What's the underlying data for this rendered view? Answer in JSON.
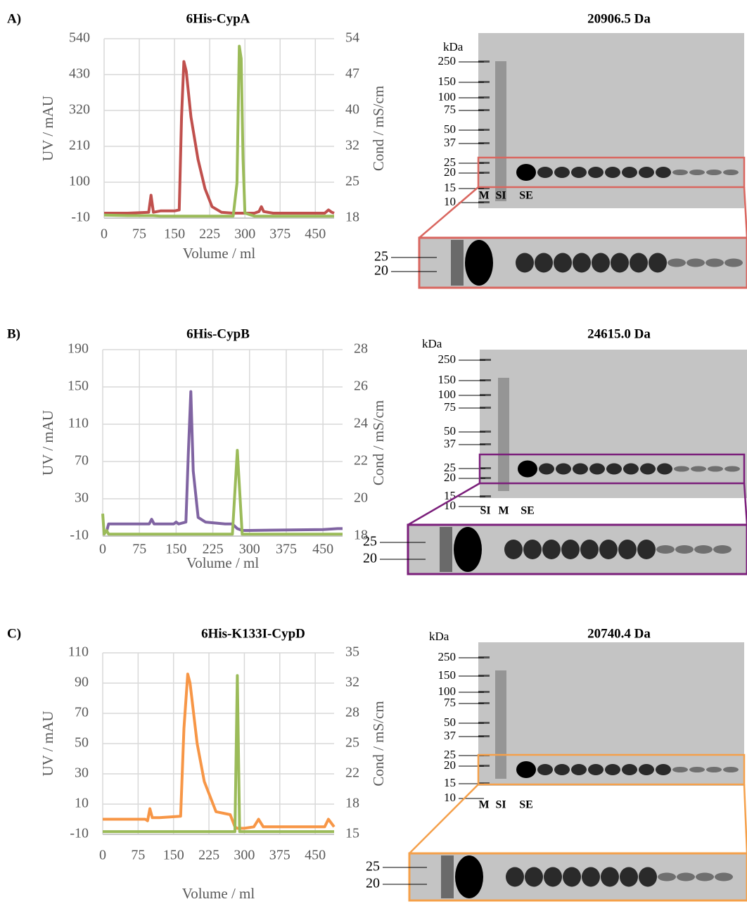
{
  "panel_labels": [
    "A)",
    "B)",
    "C)"
  ],
  "chart_data": [
    {
      "type": "line",
      "title": "6His-CypA",
      "x_label": "Volume / ml",
      "y_label": "UV / mAU",
      "y2_label": "Cond / mS/cm",
      "x": [
        0,
        50,
        95,
        100,
        105,
        120,
        150,
        160,
        165,
        170,
        175,
        185,
        200,
        215,
        230,
        250,
        275,
        283,
        288,
        292,
        296,
        300,
        320,
        330,
        335,
        340,
        360,
        400,
        470,
        478,
        485,
        490
      ],
      "xlim": [
        0,
        490
      ],
      "xticks": [
        0,
        75,
        150,
        225,
        300,
        375,
        450
      ],
      "ylim": [
        -10,
        540
      ],
      "yticks": [
        -10,
        100,
        210,
        320,
        430,
        540
      ],
      "y2lim": [
        18,
        54
      ],
      "y2ticks": [
        18,
        {
          "value": 25.2,
          "label": "25"
        },
        {
          "value": 32.4,
          "label": "32"
        },
        {
          "value": 39.6,
          "label": "40"
        },
        {
          "value": 46.8,
          "label": "47"
        },
        54
      ],
      "grid": true,
      "series": [
        {
          "color": "#c0504d",
          "values": [
            5,
            5,
            8,
            60,
            8,
            12,
            12,
            15,
            300,
            470,
            440,
            300,
            170,
            80,
            25,
            8,
            5,
            5,
            5,
            5,
            5,
            5,
            5,
            10,
            25,
            10,
            5,
            5,
            5,
            15,
            8,
            5
          ]
        },
        {
          "color": "#9bbb59",
          "axis": "y2",
          "values": [
            18.6,
            18.5,
            18.5,
            18.5,
            18.5,
            18.4,
            18.4,
            18.4,
            18.4,
            18.4,
            18.4,
            18.4,
            18.4,
            18.4,
            18.4,
            18.4,
            18.4,
            25,
            52.5,
            50,
            30,
            19,
            18.4,
            18.4,
            18.4,
            18.4,
            18.4,
            18.4,
            18.4,
            18.4,
            18.4,
            18.4
          ]
        }
      ]
    },
    {
      "type": "line",
      "title": "6His-CypB",
      "x_label": "Volume / ml",
      "y_label": "UV / mAU",
      "y2_label": "Cond / mS/cm",
      "x": [
        0,
        3,
        8,
        12,
        50,
        95,
        100,
        105,
        145,
        150,
        155,
        170,
        175,
        180,
        185,
        195,
        210,
        250,
        265,
        275,
        285,
        300,
        450,
        480,
        490
      ],
      "xlim": [
        0,
        490
      ],
      "xticks": [
        0,
        75,
        150,
        225,
        300,
        375,
        450
      ],
      "ylim": [
        -10,
        190
      ],
      "yticks": [
        -10,
        30,
        70,
        110,
        150,
        190
      ],
      "y2lim": [
        18,
        28
      ],
      "y2ticks": [
        18,
        20,
        22,
        24,
        26,
        28
      ],
      "grid": true,
      "series": [
        {
          "color": "#8064a2",
          "values": [
            null,
            null,
            -5,
            3,
            3,
            3,
            8,
            3,
            3,
            5,
            3,
            5,
            80,
            145,
            60,
            10,
            5,
            3,
            3,
            -2,
            -4,
            -4,
            -3,
            -2,
            -2
          ]
        },
        {
          "color": "#9bbb59",
          "axis": "y2",
          "values": [
            19.2,
            18.1,
            18.3,
            18.1,
            18.1,
            18.1,
            18.1,
            18.1,
            18.1,
            18.1,
            18.1,
            18.1,
            18.1,
            18.1,
            18.1,
            18.1,
            18.1,
            18.1,
            18.1,
            22.6,
            18.1,
            18.1,
            18.1,
            18.1,
            18.1
          ]
        }
      ]
    },
    {
      "type": "line",
      "title": "6His-K133I-CypD",
      "x_label": "Volume / ml",
      "y_label": "UV / mAU",
      "y2_label": "Cond / mS/cm",
      "x": [
        0,
        90,
        95,
        100,
        105,
        120,
        165,
        172,
        180,
        185,
        200,
        215,
        240,
        270,
        280,
        285,
        290,
        300,
        320,
        330,
        340,
        400,
        470,
        478,
        490
      ],
      "xlim": [
        0,
        490
      ],
      "xticks": [
        0,
        75,
        150,
        225,
        300,
        375,
        450
      ],
      "ylim": [
        -10,
        110
      ],
      "yticks": [
        -10,
        10,
        30,
        50,
        70,
        90,
        110
      ],
      "y2lim": [
        15,
        35
      ],
      "y2ticks": [
        15,
        {
          "value": 18.33,
          "label": "18"
        },
        {
          "value": 21.67,
          "label": "22"
        },
        25,
        {
          "value": 28.33,
          "label": "28"
        },
        {
          "value": 31.67,
          "label": "32"
        },
        35
      ],
      "grid": true,
      "series": [
        {
          "color": "#f79646",
          "values": [
            0,
            0,
            -1,
            7,
            1,
            1,
            2,
            60,
            96,
            90,
            50,
            25,
            5,
            3,
            -5,
            -6,
            -6,
            -6,
            -5,
            0,
            -5,
            -5,
            -5,
            0,
            -5
          ]
        },
        {
          "color": "#9bbb59",
          "axis": "y2",
          "values": [
            15.3,
            15.3,
            15.3,
            15.3,
            15.3,
            15.3,
            15.3,
            15.3,
            15.3,
            15.3,
            15.3,
            15.3,
            15.3,
            15.3,
            15.3,
            32.5,
            15.3,
            15.3,
            15.3,
            15.3,
            15.3,
            15.3,
            15.3,
            15.3,
            15.3
          ]
        }
      ]
    }
  ],
  "gels": [
    {
      "title": "20906.5 Da",
      "unit": "kDa",
      "markers": [
        250,
        150,
        100,
        75,
        50,
        37,
        25,
        20,
        15,
        10
      ],
      "lanes": [
        "M",
        "SI",
        "SE"
      ],
      "zoom_markers": [
        25,
        20
      ],
      "color": "#d9665f"
    },
    {
      "title": "24615.0 Da",
      "unit": "kDa",
      "markers": [
        250,
        150,
        100,
        75,
        50,
        37,
        25,
        20,
        15,
        10
      ],
      "lanes": [
        "SI",
        "M",
        "SE"
      ],
      "zoom_markers": [
        25,
        20
      ],
      "color": "#7b1f7b"
    },
    {
      "title": "20740.4 Da",
      "unit": "kDa",
      "markers": [
        250,
        150,
        100,
        75,
        50,
        37,
        25,
        20,
        15,
        10
      ],
      "lanes": [
        "M",
        "SI",
        "SE"
      ],
      "zoom_markers": [
        25,
        20
      ],
      "color": "#f5a04a"
    }
  ]
}
